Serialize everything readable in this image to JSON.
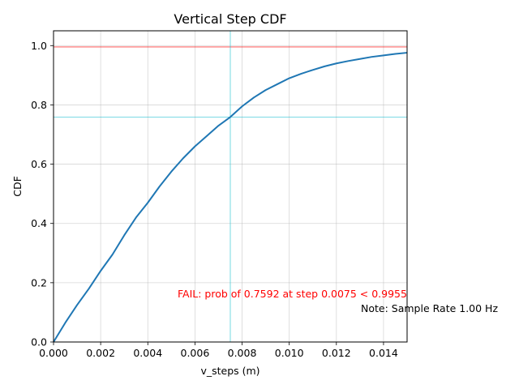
{
  "chart_data": {
    "type": "line",
    "title": "Vertical Step CDF",
    "xlabel": "v_steps (m)",
    "ylabel": "CDF",
    "xlim": [
      0,
      0.015
    ],
    "ylim": [
      0,
      1.05
    ],
    "grid": true,
    "xticks": [
      "0.000",
      "0.002",
      "0.004",
      "0.006",
      "0.008",
      "0.010",
      "0.012",
      "0.014"
    ],
    "xtick_values": [
      0,
      0.002,
      0.004,
      0.006,
      0.008,
      0.01,
      0.012,
      0.014
    ],
    "yticks": [
      "0.0",
      "0.2",
      "0.4",
      "0.6",
      "0.8",
      "1.0"
    ],
    "ytick_values": [
      0,
      0.2,
      0.4,
      0.6,
      0.8,
      1.0
    ],
    "series": [
      {
        "color": "#1f77b4",
        "x": [
          0,
          0.0005,
          0.001,
          0.0015,
          0.002,
          0.0025,
          0.003,
          0.0035,
          0.004,
          0.0045,
          0.005,
          0.0055,
          0.006,
          0.0065,
          0.007,
          0.0075,
          0.008,
          0.0085,
          0.009,
          0.0095,
          0.01,
          0.0105,
          0.011,
          0.0115,
          0.012,
          0.0125,
          0.013,
          0.0135,
          0.014,
          0.0145,
          0.015
        ],
        "y": [
          0.0,
          0.065,
          0.125,
          0.18,
          0.24,
          0.295,
          0.36,
          0.42,
          0.47,
          0.525,
          0.575,
          0.62,
          0.66,
          0.695,
          0.73,
          0.759,
          0.795,
          0.825,
          0.85,
          0.87,
          0.89,
          0.905,
          0.918,
          0.93,
          0.94,
          0.948,
          0.955,
          0.962,
          0.967,
          0.972,
          0.976
        ]
      }
    ],
    "reference_lines": [
      {
        "orientation": "horizontal",
        "value": 0.9955,
        "color": "#ff0000"
      },
      {
        "orientation": "horizontal",
        "value": 0.7592,
        "color": "#17becf"
      },
      {
        "orientation": "vertical",
        "value": 0.0075,
        "color": "#17becf"
      }
    ],
    "annotations": [
      {
        "text": "FAIL: prob of 0.7592 at step 0.0075 < 0.9955",
        "color": "#ff0000"
      },
      {
        "text": "Note: Sample Rate 1.00 Hz",
        "color": "#000000"
      }
    ]
  }
}
